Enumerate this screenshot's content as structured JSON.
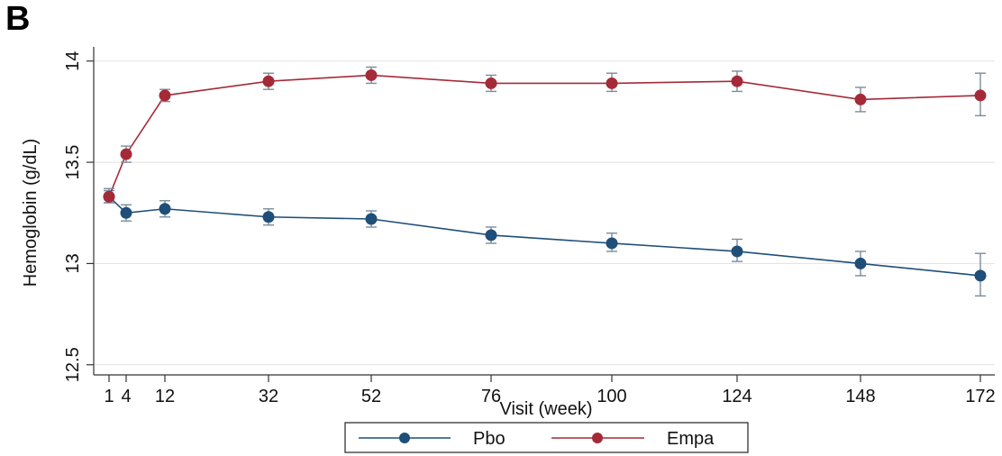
{
  "panel_label": "B",
  "chart_data": {
    "type": "line",
    "title": "",
    "xlabel": "Visit (week)",
    "ylabel": "Hemoglobin (g/dL)",
    "ylim": [
      12.45,
      14.07
    ],
    "y_ticks": [
      12.5,
      13,
      13.5,
      14
    ],
    "y_tick_labels": [
      "12.5",
      "13",
      "13.5",
      "14"
    ],
    "x_tick_labels": [
      "1",
      "4",
      "12",
      "32",
      "52",
      "76",
      "100",
      "124",
      "148",
      "172"
    ],
    "grid": true,
    "legend_position": "bottom",
    "series": [
      {
        "name": "Pbo",
        "color": "#1f4e79",
        "x": [
          1,
          4,
          12,
          32,
          52,
          76,
          100,
          124,
          148,
          172
        ],
        "y": [
          13.33,
          13.25,
          13.27,
          13.23,
          13.22,
          13.14,
          13.1,
          13.06,
          13.0,
          12.94
        ],
        "err_low": [
          13.3,
          13.21,
          13.23,
          13.19,
          13.18,
          13.1,
          13.06,
          13.01,
          12.94,
          12.84
        ],
        "err_high": [
          13.36,
          13.29,
          13.31,
          13.27,
          13.26,
          13.18,
          13.15,
          13.12,
          13.06,
          13.05
        ]
      },
      {
        "name": "Empa",
        "color": "#a52a38",
        "x": [
          1,
          4,
          12,
          32,
          52,
          76,
          100,
          124,
          148,
          172
        ],
        "y": [
          13.33,
          13.54,
          13.83,
          13.9,
          13.93,
          13.89,
          13.89,
          13.9,
          13.81,
          13.83
        ],
        "err_low": [
          13.3,
          13.5,
          13.8,
          13.86,
          13.89,
          13.85,
          13.85,
          13.85,
          13.75,
          13.73
        ],
        "err_high": [
          13.37,
          13.58,
          13.86,
          13.94,
          13.97,
          13.93,
          13.94,
          13.95,
          13.87,
          13.94
        ]
      }
    ]
  }
}
